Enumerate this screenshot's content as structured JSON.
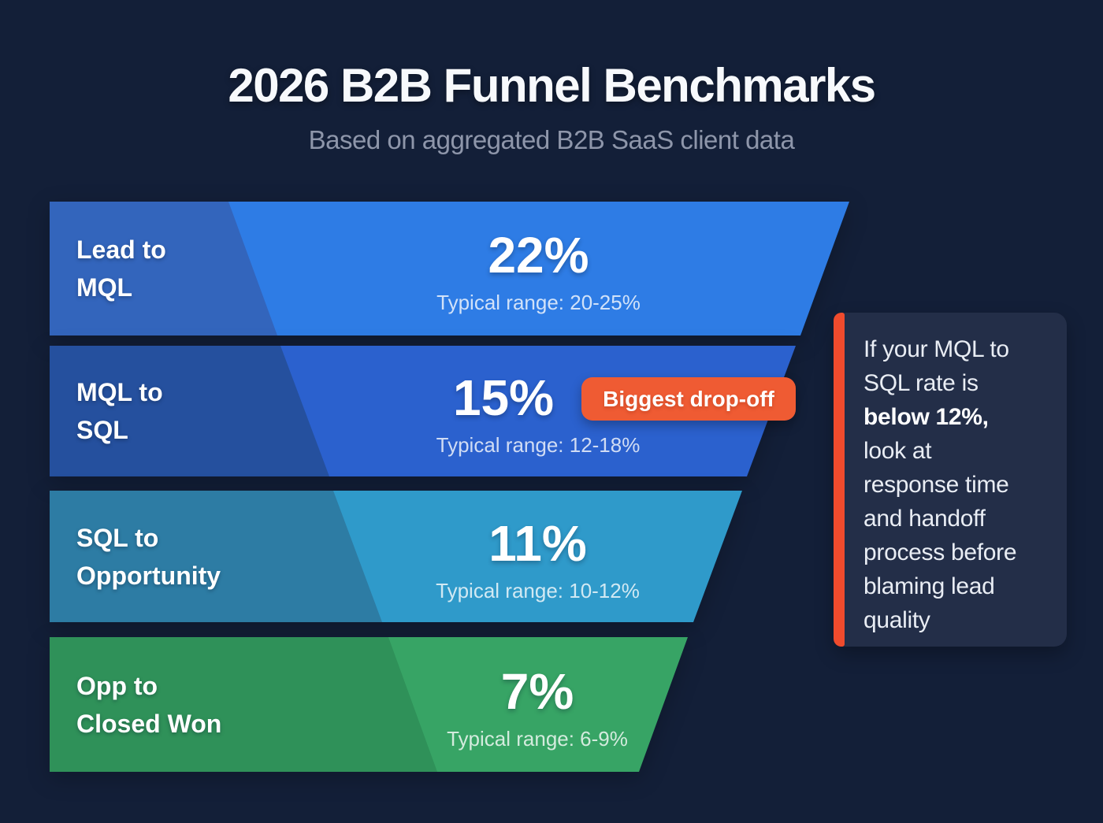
{
  "header": {
    "title": "2026 B2B Funnel Benchmarks",
    "subtitle": "Based on aggregated B2B SaaS client data"
  },
  "chart_data": {
    "type": "funnel",
    "title": "2026 B2B Funnel Benchmarks",
    "subtitle": "Based on aggregated B2B SaaS client data",
    "stages": [
      {
        "label": "Lead to MQL",
        "conversion_pct": 22,
        "typical_range": "20-25%"
      },
      {
        "label": "MQL to SQL",
        "conversion_pct": 15,
        "typical_range": "12-18%",
        "annotation": "Biggest drop-off"
      },
      {
        "label": "SQL to Opportunity",
        "conversion_pct": 11,
        "typical_range": "10-12%"
      },
      {
        "label": "Opp to Closed Won",
        "conversion_pct": 7,
        "typical_range": "6-9%"
      }
    ],
    "note": "If your MQL to SQL rate is below 12%, look at response time and handoff process before blaming lead quality",
    "legend_position": "none",
    "grid": false
  },
  "funnel": {
    "rows": [
      {
        "label": [
          "Lead to",
          "MQL"
        ],
        "value": "22%",
        "range": "Typical range: 20-25%"
      },
      {
        "label": [
          "MQL to",
          "SQL"
        ],
        "value": "15%",
        "range": "Typical range: 12-18%",
        "badge": "Biggest drop-off"
      },
      {
        "label": [
          "SQL to",
          "Opportunity"
        ],
        "value": "11%",
        "range": "Typical range: 10-12%"
      },
      {
        "label": [
          "Opp to",
          "Closed Won"
        ],
        "value": "7%",
        "range": "Typical range: 6-9%"
      }
    ]
  },
  "callout": {
    "lines": [
      {
        "text": "If your MQL to"
      },
      {
        "text": "SQL rate is"
      },
      {
        "text": "below 12%,",
        "bold": true
      },
      {
        "text": "look at"
      },
      {
        "text": "response time"
      },
      {
        "text": "and handoff"
      },
      {
        "text": "process before"
      },
      {
        "text": "blaming lead"
      },
      {
        "text": "quality"
      }
    ]
  },
  "colors": {
    "background": "#131f38",
    "row1_value_bg": "#2e7ce5",
    "row1_label_bg": "#3365bc",
    "row2_value_bg": "#2b61ce",
    "row2_label_bg": "#25509e",
    "row3_value_bg": "#2f9aca",
    "row3_label_bg": "#2d7ca4",
    "row4_value_bg": "#37a465",
    "row4_label_bg": "#2f9159",
    "badge_bg": "#ef5b33",
    "callout_bg": "#232e48",
    "callout_accent": "#f04b2d",
    "title_text": "#f7f9fc",
    "subtitle_text": "#8e96aa"
  }
}
